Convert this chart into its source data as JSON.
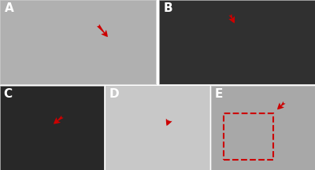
{
  "title": "",
  "background_color": "#ffffff",
  "panels": [
    {
      "label": "A",
      "row": 0,
      "col": 0,
      "colspan": 1
    },
    {
      "label": "B",
      "row": 0,
      "col": 1,
      "colspan": 1
    },
    {
      "label": "C",
      "row": 1,
      "col": 0,
      "colspan": 1
    },
    {
      "label": "D",
      "row": 1,
      "col": 1,
      "colspan": 1
    },
    {
      "label": "E",
      "row": 1,
      "col": 2,
      "colspan": 1
    }
  ],
  "label_color": "#ffffff",
  "label_fontsize": 11,
  "label_fontweight": "bold",
  "figsize": [
    4.0,
    2.16
  ],
  "dpi": 100,
  "panel_colors": {
    "A": "#b0b0b0",
    "B": "#303030",
    "C": "#282828",
    "D": "#c8c8c8",
    "E": "#a8a8a8"
  },
  "arrow_color": "#cc0000",
  "border_color": "#cc0000",
  "outer_border": "#cccccc"
}
